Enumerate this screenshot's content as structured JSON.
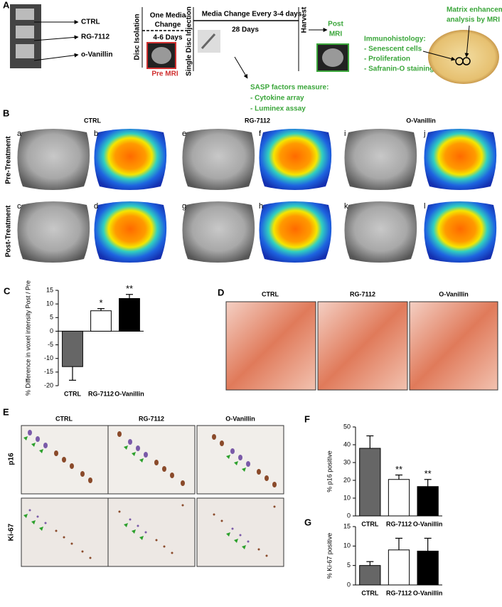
{
  "panel_a": {
    "label": "A",
    "groups": [
      "CTRL",
      "RG-7112",
      "o-Vanillin"
    ],
    "disc_isolation": "Disc Isolation",
    "media_change_1": [
      "One Media",
      "Change"
    ],
    "days_1": "4-6 Days",
    "pre_mri": "Pre MRI",
    "injection": "Single Disc Injection",
    "media_change_2": "Media Change Every 3-4 days",
    "days_2": "28 Days",
    "harvest": "Harvest",
    "post_mri": [
      "Post",
      "MRI"
    ],
    "sasp": [
      "SASP factors measure:",
      "- Cytokine array",
      "- Luminex assay"
    ],
    "immuno": [
      "Immunohistology:",
      "- Senescent cells",
      "- Proliferation",
      "- Safranin-O staining"
    ],
    "matrix": [
      "Matrix enhancement",
      "analysis by MRI"
    ]
  },
  "panel_b": {
    "label": "B",
    "groups": [
      "CTRL",
      "RG-7112",
      "O-Vanillin"
    ],
    "rows": [
      "Pre-Treatment",
      "Post-Treatment"
    ],
    "letters": [
      [
        "a",
        "b",
        "e",
        "f",
        "i",
        "j"
      ],
      [
        "c",
        "d",
        "g",
        "h",
        "k",
        "l"
      ]
    ]
  },
  "panel_d": {
    "label": "D",
    "groups": [
      "CTRL",
      "RG-7112",
      "O-Vanillin"
    ]
  },
  "panel_e": {
    "label": "E",
    "groups": [
      "CTRL",
      "RG-7112",
      "O-Vanillin"
    ],
    "rows": [
      "p16",
      "Ki-67"
    ]
  },
  "chart_data": [
    {
      "type": "bar",
      "panel": "C",
      "ylabel": "% Difference in voxel intensity Post / Pre",
      "categories": [
        "CTRL",
        "RG-7112",
        "O-Vanillin"
      ],
      "values": [
        -13,
        7.5,
        12
      ],
      "errors": [
        5,
        0.8,
        1.5
      ],
      "colors": [
        "#666666",
        "#ffffff",
        "#000000"
      ],
      "annotations": [
        null,
        "*",
        "**"
      ],
      "ylim": [
        -20,
        15
      ],
      "yticks": [
        -20,
        -15,
        -10,
        -5,
        0,
        5,
        10,
        15
      ]
    },
    {
      "type": "bar",
      "panel": "F",
      "ylabel": "% p16 positive",
      "categories": [
        "CTRL",
        "RG-7112",
        "O-Vanillin"
      ],
      "values": [
        38,
        20.5,
        16.5
      ],
      "errors": [
        7,
        2.5,
        4
      ],
      "colors": [
        "#666666",
        "#ffffff",
        "#000000"
      ],
      "annotations": [
        null,
        "**",
        "**"
      ],
      "ylim": [
        0,
        50
      ],
      "yticks": [
        0,
        10,
        20,
        30,
        40,
        50
      ]
    },
    {
      "type": "bar",
      "panel": "G",
      "ylabel": "% Ki-67 positive",
      "categories": [
        "CTRL",
        "RG-7112",
        "O-Vanillin"
      ],
      "values": [
        5,
        9,
        8.7
      ],
      "errors": [
        1,
        3,
        3.3
      ],
      "colors": [
        "#666666",
        "#ffffff",
        "#000000"
      ],
      "annotations": [
        null,
        null,
        null
      ],
      "ylim": [
        0,
        15
      ],
      "yticks": [
        0,
        5,
        10,
        15
      ]
    }
  ]
}
